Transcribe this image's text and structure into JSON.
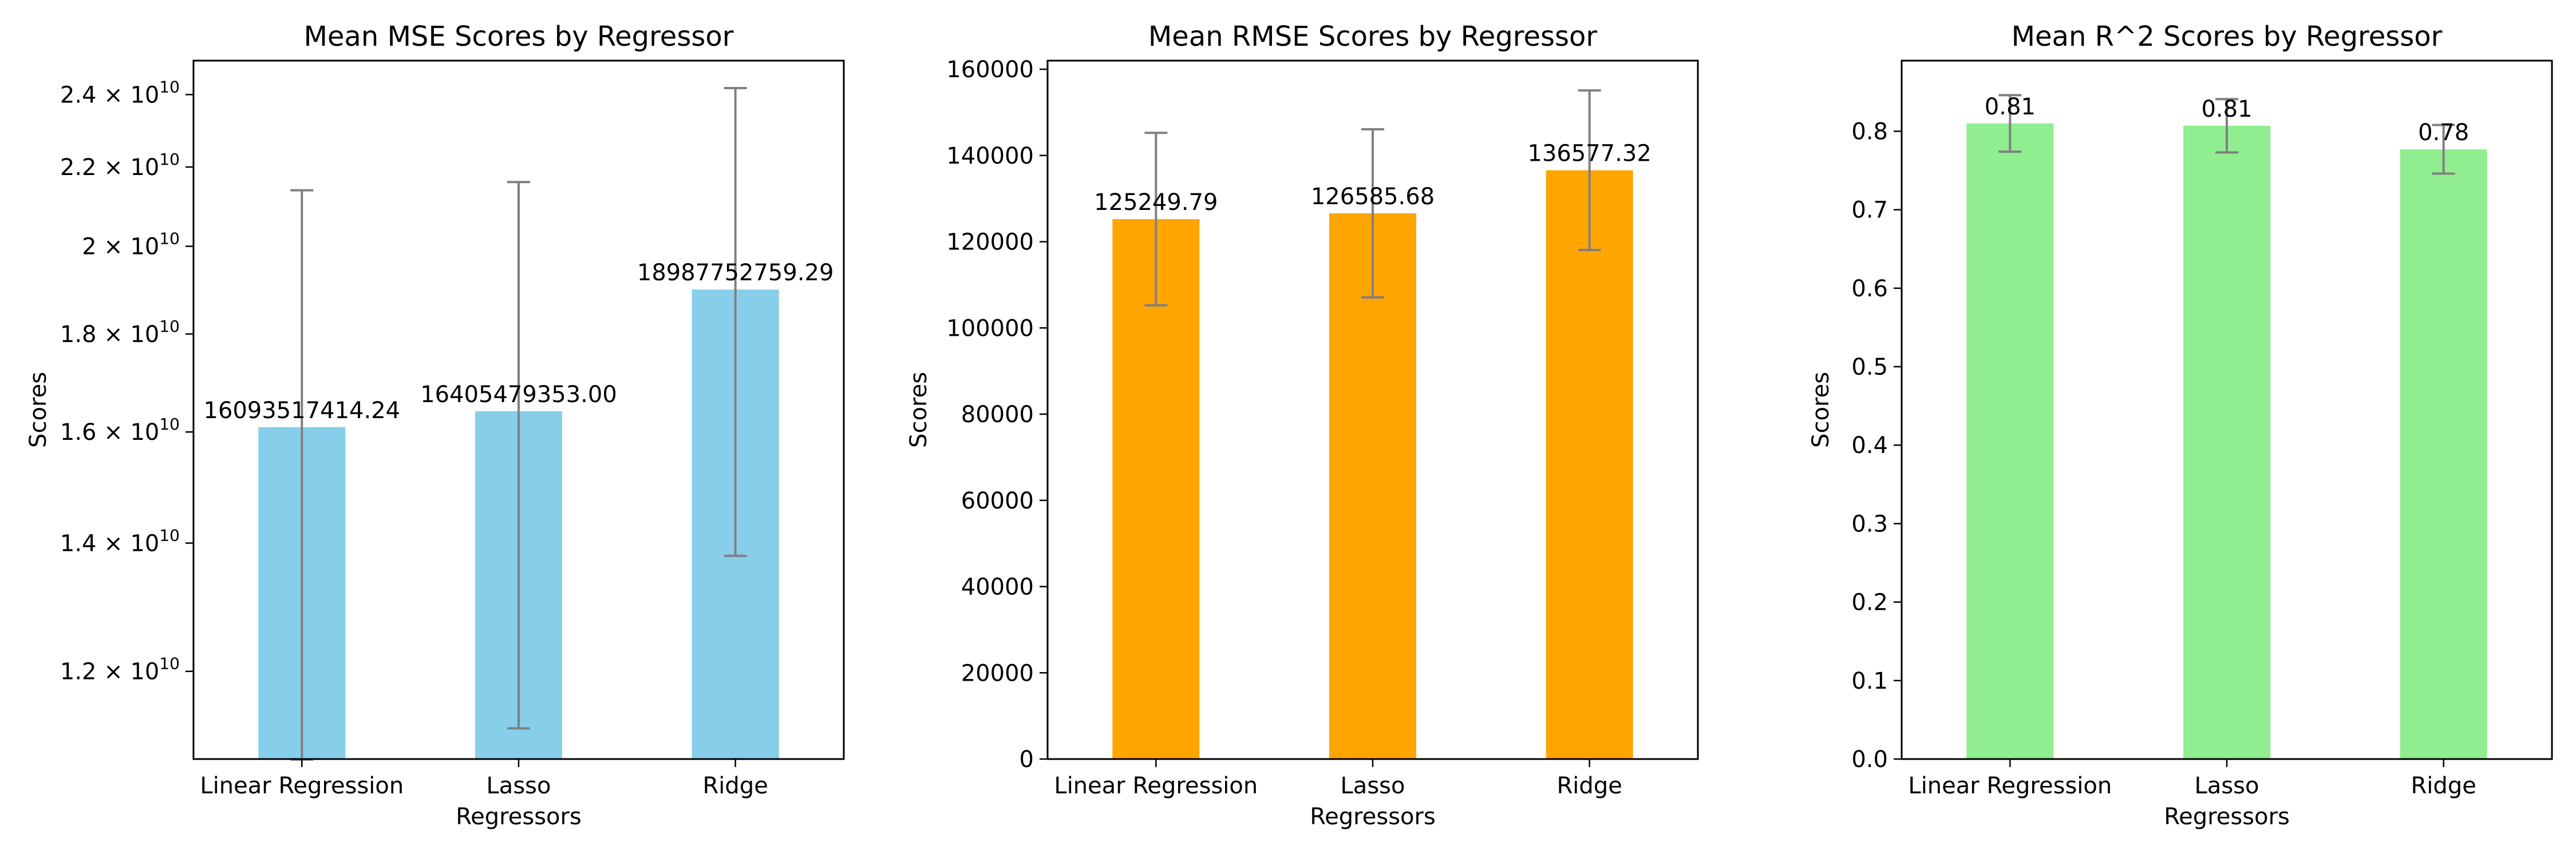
{
  "chart_data": [
    {
      "type": "bar",
      "title": "Mean MSE Scores by Regressor",
      "xlabel": "Regressors",
      "ylabel": "Scores",
      "categories": [
        "Linear Regression",
        "Lasso",
        "Ridge"
      ],
      "values": [
        16093517414.24,
        16405479353.0,
        18987752759.29
      ],
      "error": [
        5300000000,
        5200000000,
        5200000000
      ],
      "data_labels": [
        "16093517414.24",
        "16405479353.00",
        "18987752759.29"
      ],
      "scale": "log",
      "ylim": [
        10800000000,
        25000000000
      ],
      "yticks": [
        {
          "value": 12000000000,
          "mantissa": "1.2",
          "exp": "10"
        },
        {
          "value": 14000000000,
          "mantissa": "1.4",
          "exp": "10"
        },
        {
          "value": 16000000000,
          "mantissa": "1.6",
          "exp": "10"
        },
        {
          "value": 18000000000,
          "mantissa": "1.8",
          "exp": "10"
        },
        {
          "value": 20000000000,
          "mantissa": "2",
          "exp": "10"
        },
        {
          "value": 22000000000,
          "mantissa": "2.2",
          "exp": "10"
        },
        {
          "value": 24000000000,
          "mantissa": "2.4",
          "exp": "10"
        }
      ],
      "tick_base": "10",
      "color": "#87ceeb",
      "error_color": "#808080",
      "grid": false
    },
    {
      "type": "bar",
      "title": "Mean RMSE Scores by Regressor",
      "xlabel": "Regressors",
      "ylabel": "Scores",
      "categories": [
        "Linear Regression",
        "Lasso",
        "Ridge"
      ],
      "values": [
        125249.79,
        126585.68,
        136577.32
      ],
      "error": [
        20000,
        19500,
        18500
      ],
      "data_labels": [
        "125249.79",
        "126585.68",
        "136577.32"
      ],
      "scale": "linear",
      "ylim": [
        0,
        162000
      ],
      "yticks": [
        {
          "value": 0,
          "label": "0"
        },
        {
          "value": 20000,
          "label": "20000"
        },
        {
          "value": 40000,
          "label": "40000"
        },
        {
          "value": 60000,
          "label": "60000"
        },
        {
          "value": 80000,
          "label": "80000"
        },
        {
          "value": 100000,
          "label": "100000"
        },
        {
          "value": 120000,
          "label": "120000"
        },
        {
          "value": 140000,
          "label": "140000"
        },
        {
          "value": 160000,
          "label": "160000"
        }
      ],
      "color": "#ffa500",
      "error_color": "#808080",
      "grid": false
    },
    {
      "type": "bar",
      "title": "Mean R^2 Scores by Regressor",
      "xlabel": "Regressors",
      "ylabel": "Scores",
      "categories": [
        "Linear Regression",
        "Lasso",
        "Ridge"
      ],
      "values": [
        0.81,
        0.807,
        0.777
      ],
      "error": [
        0.036,
        0.034,
        0.031
      ],
      "data_labels": [
        "0.81",
        "0.81",
        "0.78"
      ],
      "scale": "linear",
      "ylim": [
        0,
        0.89
      ],
      "yticks": [
        {
          "value": 0,
          "label": "0.0"
        },
        {
          "value": 0.1,
          "label": "0.1"
        },
        {
          "value": 0.2,
          "label": "0.2"
        },
        {
          "value": 0.3,
          "label": "0.3"
        },
        {
          "value": 0.4,
          "label": "0.4"
        },
        {
          "value": 0.5,
          "label": "0.5"
        },
        {
          "value": 0.6,
          "label": "0.6"
        },
        {
          "value": 0.7,
          "label": "0.7"
        },
        {
          "value": 0.8,
          "label": "0.8"
        }
      ],
      "color": "#90ee90",
      "error_color": "#808080",
      "grid": false
    }
  ]
}
